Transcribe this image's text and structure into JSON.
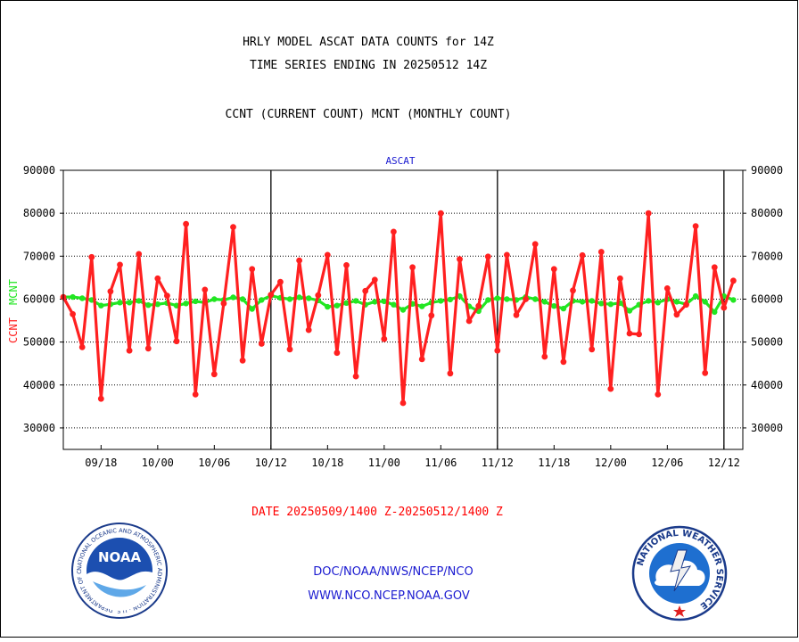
{
  "header": {
    "line1": "HRLY MODEL ASCAT DATA COUNTS for 14Z",
    "line2": "TIME SERIES ENDING IN 20250512 14Z",
    "line3": "CCNT (CURRENT COUNT) MCNT (MONTHLY COUNT)"
  },
  "footer": {
    "date_range": "DATE 20250509/1400 Z-20250512/1400 Z",
    "org": "DOC/NOAA/NWS/NCEP/NCO",
    "url": "WWW.NCO.NCEP.NOAA.GOV"
  },
  "logos": {
    "noaa_text": "NOAA",
    "noaa_ring": "NATIONAL OCEANIC AND ATMOSPHERIC ADMINISTRATION · U.S. DEPARTMENT OF COMMERCE ·",
    "nws_ring": "NATIONAL WEATHER SERVICE"
  },
  "colors": {
    "current": "#ff2020",
    "monthly": "#22e622",
    "title": "#000000",
    "footer_red": "#ff0000",
    "footer_blue": "#1a1ad0"
  },
  "chart_data": {
    "type": "line",
    "title": "ASCAT",
    "ylabel_current": "CCNT",
    "ylabel_monthly": "MCNT",
    "ylim": [
      25000,
      90000
    ],
    "yticks": [
      30000,
      40000,
      50000,
      60000,
      70000,
      80000,
      90000
    ],
    "ytick_labels": [
      "30000",
      "40000",
      "50000",
      "60000",
      "70000",
      "80000",
      "90000"
    ],
    "grid": true,
    "x": [
      0,
      1,
      2,
      3,
      4,
      5,
      6,
      7,
      8,
      9,
      10,
      11,
      12,
      13,
      14,
      15,
      16,
      17,
      18,
      19,
      20,
      21,
      22,
      23,
      24,
      25,
      26,
      27,
      28,
      29,
      30,
      31,
      32,
      33,
      34,
      35,
      36,
      37,
      38,
      39,
      40,
      41,
      42,
      43,
      44,
      45,
      46,
      47,
      48,
      49,
      50,
      51,
      52,
      53,
      54,
      55,
      56,
      57,
      58,
      59,
      60,
      61,
      62,
      63,
      64,
      65,
      66,
      67,
      68,
      69,
      70,
      71
    ],
    "xlim": [
      0,
      72
    ],
    "xticks": [
      4,
      10,
      16,
      22,
      28,
      34,
      40,
      46,
      52,
      58,
      64,
      70
    ],
    "xtick_labels": [
      "09/18",
      "10/00",
      "10/06",
      "10/12",
      "10/18",
      "11/00",
      "11/06",
      "11/12",
      "11/18",
      "12/00",
      "12/06",
      "12/12"
    ],
    "day_boundaries": [
      22,
      46,
      70
    ],
    "series": [
      {
        "name": "CCNT",
        "values": [
          60500,
          56500,
          48800,
          69800,
          36800,
          61800,
          68000,
          48000,
          70500,
          48500,
          64800,
          60800,
          50200,
          77500,
          37800,
          62200,
          42500,
          59000,
          76800,
          45700,
          67000,
          49600,
          61000,
          64000,
          48300,
          69000,
          52800,
          60900,
          70300,
          47500,
          67900,
          42000,
          61900,
          64500,
          50700,
          75700,
          35800,
          67400,
          46000,
          56200,
          80000,
          42700,
          69300,
          54900,
          58400,
          69900,
          48000,
          70300,
          56300,
          60000,
          72800,
          46600,
          67000,
          45400,
          62000,
          70200,
          48300,
          71000,
          39100,
          64800,
          52000,
          51800,
          80000,
          37800,
          62500,
          56400,
          58700,
          77000,
          42800,
          67400,
          58000,
          64300
        ]
      },
      {
        "name": "MCNT",
        "values": [
          60500,
          60500,
          60200,
          59800,
          58500,
          58800,
          59200,
          59200,
          59600,
          58600,
          58800,
          59100,
          58500,
          59000,
          59500,
          59200,
          60000,
          59800,
          60400,
          60000,
          57700,
          59800,
          60800,
          60300,
          60000,
          60400,
          60200,
          59700,
          58200,
          58500,
          59100,
          59600,
          58700,
          59400,
          59500,
          58700,
          57500,
          58900,
          58300,
          59200,
          59600,
          59900,
          60700,
          58300,
          57200,
          59800,
          60200,
          60000,
          59800,
          60500,
          60000,
          59400,
          58400,
          57800,
          59600,
          59400,
          59600,
          59000,
          58800,
          59100,
          57300,
          58700,
          59600,
          59200,
          60000,
          59400,
          58800,
          60700,
          59400,
          57000,
          60700,
          59800
        ]
      }
    ]
  }
}
